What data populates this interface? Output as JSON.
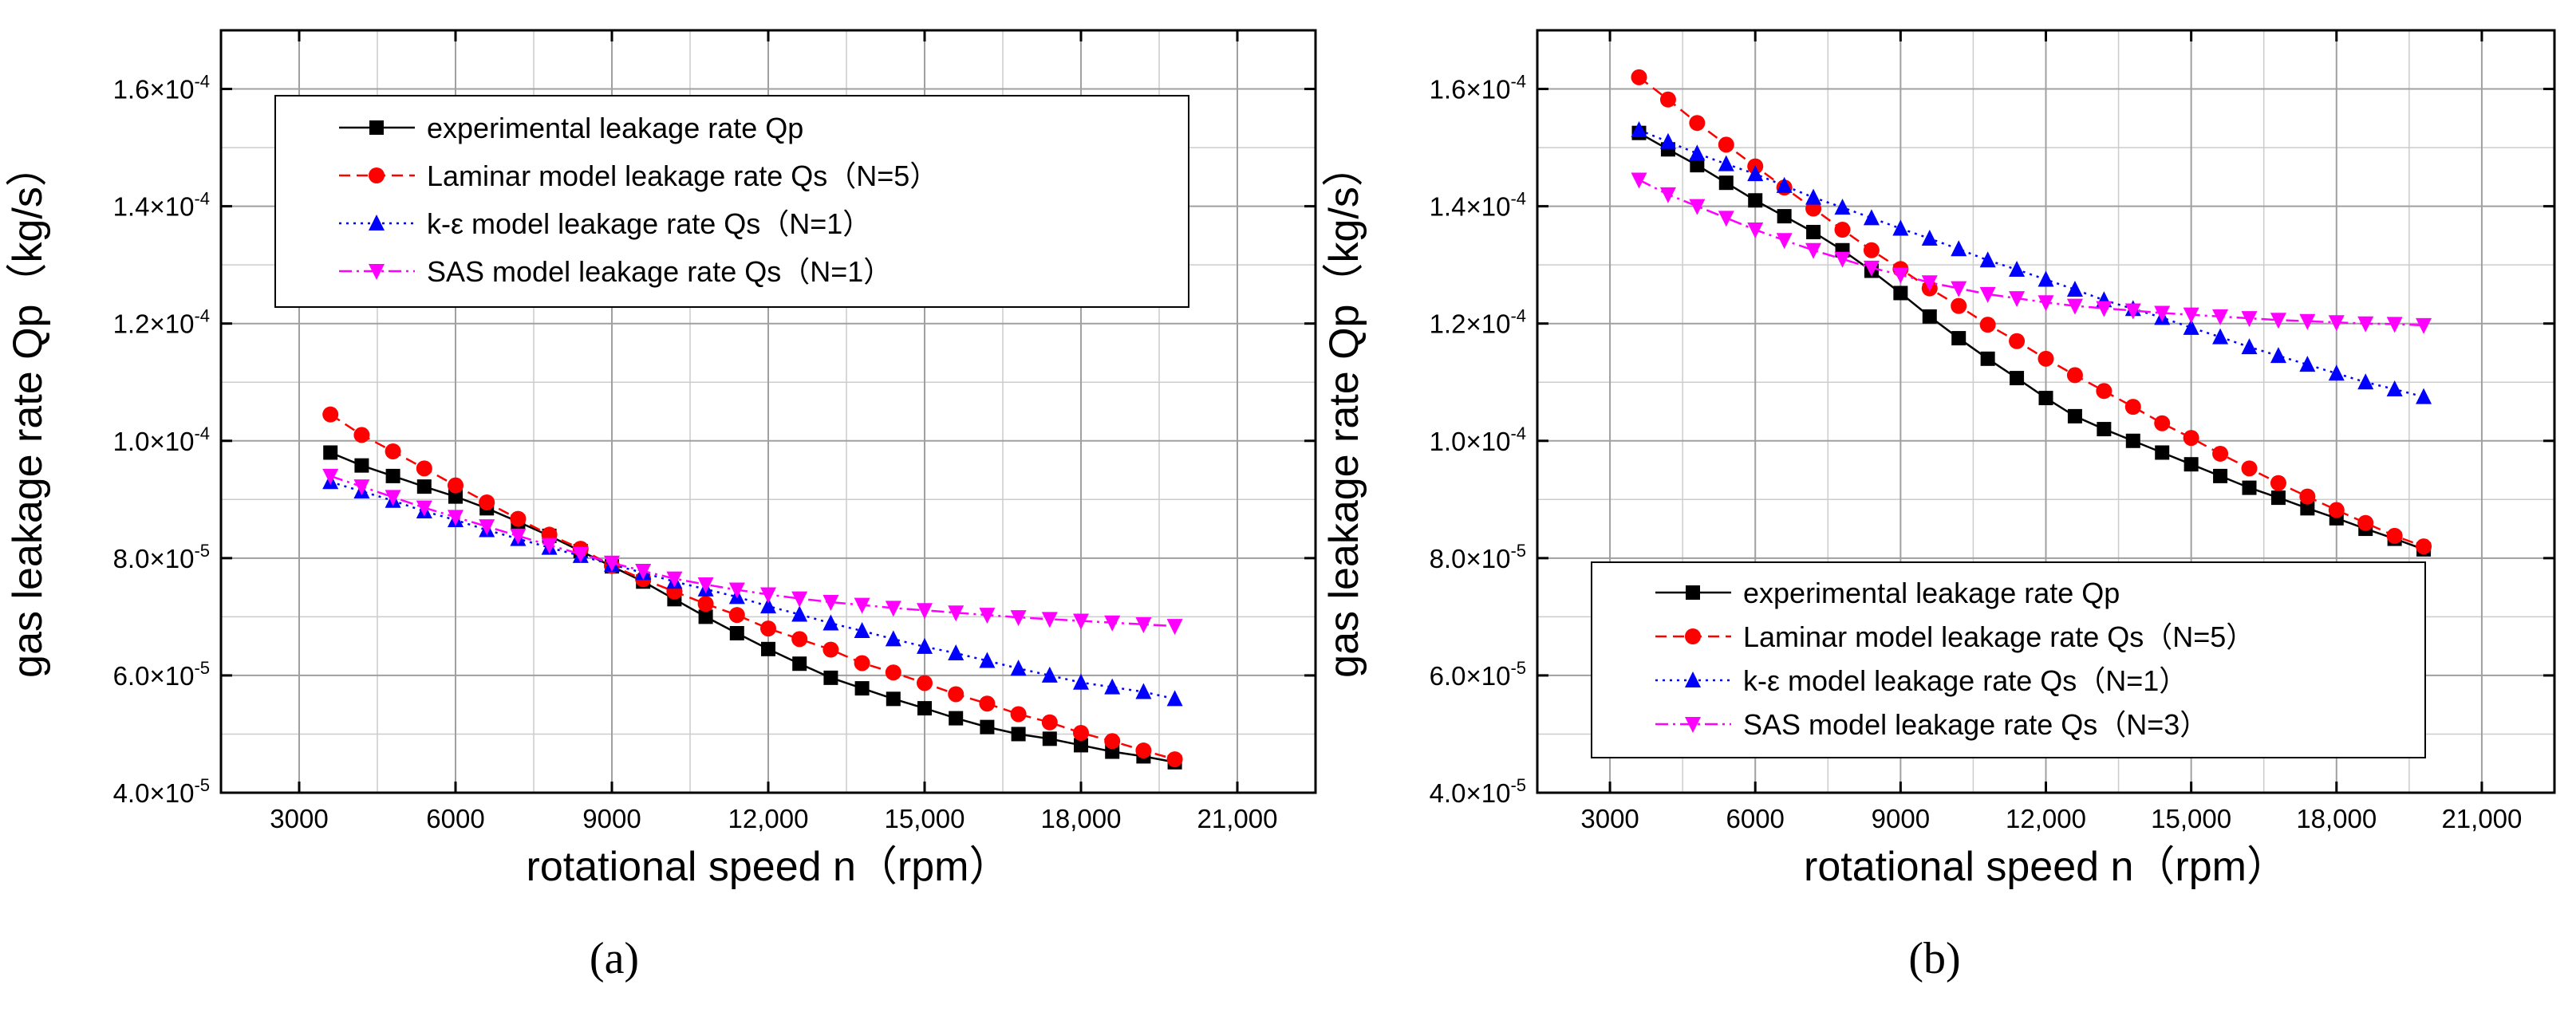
{
  "colors": {
    "experimental": "#000000",
    "laminar": "#ff0000",
    "k_epsilon": "#0000ff",
    "sas": "#ff00ff",
    "grid_major": "#a0a0a0",
    "grid_minor": "#cccccc"
  },
  "chart_data": [
    {
      "type": "line",
      "panel_label": "(a)",
      "xlabel": "rotational speed n（rpm）",
      "ylabel": "gas leakage rate Qp（kg/s）",
      "xlim": [
        1500,
        22500
      ],
      "ylim": [
        4e-05,
        0.00017
      ],
      "x_ticks": [
        3000,
        6000,
        9000,
        12000,
        15000,
        18000,
        21000
      ],
      "x_tick_labels": [
        "3000",
        "6000",
        "9000",
        "12,000",
        "15,000",
        "18,000",
        "21,000"
      ],
      "y_ticks": [
        4e-05,
        6e-05,
        8e-05,
        0.0001,
        0.00012,
        0.00014,
        0.00016
      ],
      "y_tick_labels": [
        {
          "mantissa": "4.0×10",
          "exponent": "-5"
        },
        {
          "mantissa": "6.0×10",
          "exponent": "-5"
        },
        {
          "mantissa": "8.0×10",
          "exponent": "-5"
        },
        {
          "mantissa": "1.0×10",
          "exponent": "-4"
        },
        {
          "mantissa": "1.2×10",
          "exponent": "-4"
        },
        {
          "mantissa": "1.4×10",
          "exponent": "-4"
        },
        {
          "mantissa": "1.6×10",
          "exponent": "-4"
        }
      ],
      "grid": true,
      "legend_position": "top-left",
      "x": [
        3600,
        4200,
        4800,
        5400,
        6000,
        6600,
        7200,
        7800,
        8400,
        9000,
        9600,
        10200,
        10800,
        11400,
        12000,
        12600,
        13200,
        13800,
        14400,
        15000,
        15600,
        16200,
        16800,
        17400,
        18000,
        18600,
        19200,
        19800
      ],
      "series": [
        {
          "name": "experimental leakage rate Qp",
          "marker": "square",
          "dash": "solid",
          "color": "#000000",
          "values": [
            9.8e-05,
            9.58e-05,
            9.4e-05,
            9.22e-05,
            9.05e-05,
            8.85e-05,
            8.62e-05,
            8.38e-05,
            8.12e-05,
            7.86e-05,
            7.6e-05,
            7.3e-05,
            7e-05,
            6.72e-05,
            6.45e-05,
            6.2e-05,
            5.96e-05,
            5.78e-05,
            5.6e-05,
            5.44e-05,
            5.27e-05,
            5.12e-05,
            5e-05,
            4.92e-05,
            4.81e-05,
            4.7e-05,
            4.62e-05,
            4.52e-05
          ]
        },
        {
          "name": "Laminar model leakage rate Qs（N=5）",
          "marker": "circle",
          "dash": "dashed",
          "color": "#ff0000",
          "values": [
            0.0001045,
            0.000101,
            9.82e-05,
            9.53e-05,
            9.24e-05,
            8.95e-05,
            8.67e-05,
            8.4e-05,
            8.16e-05,
            7.87e-05,
            7.64e-05,
            7.43e-05,
            7.22e-05,
            7.03e-05,
            6.8e-05,
            6.62e-05,
            6.44e-05,
            6.21e-05,
            6.05e-05,
            5.87e-05,
            5.68e-05,
            5.52e-05,
            5.34e-05,
            5.2e-05,
            5.02e-05,
            4.88e-05,
            4.72e-05,
            4.57e-05
          ]
        },
        {
          "name": "k-ε model leakage rate Qs（N=1）",
          "marker": "triangle-up",
          "dash": "dotted",
          "color": "#0000ff",
          "values": [
            9.3e-05,
            9.14e-05,
            8.98e-05,
            8.8e-05,
            8.65e-05,
            8.48e-05,
            8.33e-05,
            8.18e-05,
            8.04e-05,
            7.89e-05,
            7.75e-05,
            7.6e-05,
            7.47e-05,
            7.34e-05,
            7.18e-05,
            7.04e-05,
            6.89e-05,
            6.76e-05,
            6.62e-05,
            6.49e-05,
            6.38e-05,
            6.25e-05,
            6.12e-05,
            6e-05,
            5.88e-05,
            5.8e-05,
            5.72e-05,
            5.6e-05
          ]
        },
        {
          "name": "SAS model leakage rate Qs（N=1）",
          "marker": "triangle-down",
          "dash": "dashdot",
          "color": "#ff00ff",
          "values": [
            9.4e-05,
            9.22e-05,
            9.04e-05,
            8.86e-05,
            8.7e-05,
            8.54e-05,
            8.38e-05,
            8.22e-05,
            8.07e-05,
            7.92e-05,
            7.78e-05,
            7.65e-05,
            7.55e-05,
            7.46e-05,
            7.38e-05,
            7.31e-05,
            7.25e-05,
            7.2e-05,
            7.15e-05,
            7.11e-05,
            7.07e-05,
            7.03e-05,
            6.99e-05,
            6.96e-05,
            6.93e-05,
            6.9e-05,
            6.87e-05,
            6.84e-05
          ]
        }
      ]
    },
    {
      "type": "line",
      "panel_label": "(b)",
      "xlabel": "rotational speed n（rpm）",
      "ylabel": "gas leakage rate Qp（kg/s）",
      "xlim": [
        1500,
        22500
      ],
      "ylim": [
        4e-05,
        0.00017
      ],
      "x_ticks": [
        3000,
        6000,
        9000,
        12000,
        15000,
        18000,
        21000
      ],
      "x_tick_labels": [
        "3000",
        "6000",
        "9000",
        "12,000",
        "15,000",
        "18,000",
        "21,000"
      ],
      "y_ticks": [
        4e-05,
        6e-05,
        8e-05,
        0.0001,
        0.00012,
        0.00014,
        0.00016
      ],
      "y_tick_labels": [
        {
          "mantissa": "4.0×10",
          "exponent": "-5"
        },
        {
          "mantissa": "6.0×10",
          "exponent": "-5"
        },
        {
          "mantissa": "8.0×10",
          "exponent": "-5"
        },
        {
          "mantissa": "1.0×10",
          "exponent": "-4"
        },
        {
          "mantissa": "1.2×10",
          "exponent": "-4"
        },
        {
          "mantissa": "1.4×10",
          "exponent": "-4"
        },
        {
          "mantissa": "1.6×10",
          "exponent": "-4"
        }
      ],
      "grid": true,
      "legend_position": "bottom-left",
      "x": [
        3600,
        4200,
        4800,
        5400,
        6000,
        6600,
        7200,
        7800,
        8400,
        9000,
        9600,
        10200,
        10800,
        11400,
        12000,
        12600,
        13200,
        13800,
        14400,
        15000,
        15600,
        16200,
        16800,
        17400,
        18000,
        18600,
        19200,
        19800
      ],
      "series": [
        {
          "name": "experimental leakage rate Qp",
          "marker": "square",
          "dash": "solid",
          "color": "#000000",
          "values": [
            0.0001525,
            0.0001497,
            0.000147,
            0.000144,
            0.000141,
            0.0001383,
            0.0001356,
            0.0001325,
            0.000129,
            0.0001252,
            0.0001212,
            0.0001175,
            0.000114,
            0.0001107,
            0.0001073,
            0.0001042,
            0.000102,
            0.0001,
            9.8e-05,
            9.6e-05,
            9.4e-05,
            9.2e-05,
            9.03e-05,
            8.85e-05,
            8.68e-05,
            8.5e-05,
            8.33e-05,
            8.15e-05
          ]
        },
        {
          "name": "Laminar model leakage rate Qs（N=5）",
          "marker": "circle",
          "dash": "dashed",
          "color": "#ff0000",
          "values": [
            0.000162,
            0.0001582,
            0.0001542,
            0.0001505,
            0.0001468,
            0.0001432,
            0.0001396,
            0.000136,
            0.0001325,
            0.0001293,
            0.000126,
            0.000123,
            0.0001198,
            0.000117,
            0.000114,
            0.0001112,
            0.0001085,
            0.0001058,
            0.000103,
            0.0001005,
            9.78e-05,
            9.53e-05,
            9.28e-05,
            9.05e-05,
            8.82e-05,
            8.6e-05,
            8.38e-05,
            8.2e-05
          ]
        },
        {
          "name": "k-ε model leakage rate Qs（N=1）",
          "marker": "triangle-up",
          "dash": "dotted",
          "color": "#0000ff",
          "values": [
            0.000153,
            0.000151,
            0.000149,
            0.0001472,
            0.0001455,
            0.0001435,
            0.0001415,
            0.0001398,
            0.000138,
            0.0001362,
            0.0001345,
            0.0001327,
            0.0001308,
            0.0001292,
            0.0001275,
            0.0001258,
            0.000124,
            0.0001225,
            0.000121,
            0.0001193,
            0.0001177,
            0.000116,
            0.0001145,
            0.000113,
            0.0001115,
            0.00011,
            0.0001088,
            0.0001075
          ]
        },
        {
          "name": "SAS model leakage rate Qs（N=3）",
          "marker": "triangle-down",
          "dash": "dashdot",
          "color": "#ff00ff",
          "values": [
            0.0001445,
            0.000142,
            0.00014,
            0.000138,
            0.000136,
            0.0001342,
            0.0001325,
            0.000131,
            0.0001295,
            0.0001283,
            0.000127,
            0.000126,
            0.000125,
            0.0001243,
            0.0001236,
            0.000123,
            0.0001226,
            0.0001222,
            0.0001218,
            0.0001215,
            0.0001212,
            0.0001209,
            0.0001206,
            0.0001204,
            0.0001202,
            0.00012,
            0.0001199,
            0.0001197
          ]
        }
      ]
    }
  ]
}
